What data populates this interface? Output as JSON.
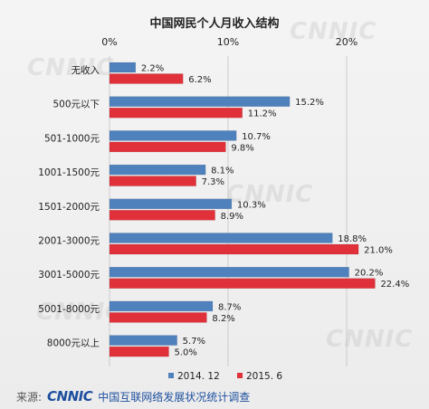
{
  "footer": {
    "source_label": "来源:",
    "logo_text": "CNNIC",
    "organization": "中国互联网络发展状况统计调查"
  },
  "watermark": "CNNIC",
  "colors": {
    "series_2014": "#4f81bd",
    "series_2015": "#e0303a",
    "gridline": "#cccccc"
  },
  "chart_data": {
    "type": "bar",
    "orientation": "horizontal",
    "title": "中国网民个人月收入结构",
    "categories": [
      "无收入",
      "500元以下",
      "501-1000元",
      "1001-1500元",
      "1501-2000元",
      "2001-3000元",
      "3001-5000元",
      "5001-8000元",
      "8000元以上"
    ],
    "series": [
      {
        "name": "2014. 12",
        "values": [
          2.2,
          15.2,
          10.7,
          8.1,
          10.3,
          18.8,
          20.2,
          8.7,
          5.7
        ],
        "labels": [
          "2.2%",
          "15.2%",
          "10.7%",
          "8.1%",
          "10.3%",
          "18.8%",
          "20.2%",
          "8.7%",
          "5.7%"
        ]
      },
      {
        "name": "2015. 6",
        "values": [
          6.2,
          11.2,
          9.8,
          7.3,
          8.9,
          21.0,
          22.4,
          8.2,
          5.0
        ],
        "labels": [
          "6.2%",
          "11.2%",
          "9.8%",
          "7.3%",
          "8.9%",
          "21.0%",
          "22.4%",
          "8.2%",
          "5.0%"
        ]
      }
    ],
    "x_ticks": [
      0,
      10,
      20
    ],
    "x_tick_labels": [
      "0%",
      "10%",
      "20%"
    ],
    "xlim": [
      0,
      25
    ],
    "grid": true,
    "legend_position": "bottom"
  }
}
